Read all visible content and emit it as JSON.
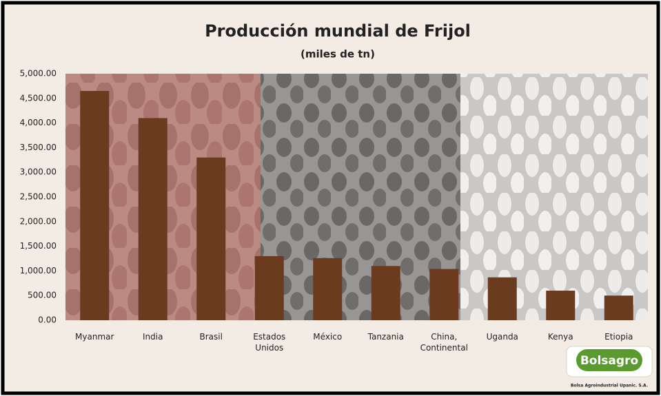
{
  "chart_data": {
    "type": "bar",
    "title": "Producción mundial de Frijol",
    "subtitle": "(miles de tn)",
    "categories": [
      "Myanmar",
      "India",
      "Brasil",
      "Estados Unidos",
      "México",
      "Tanzania",
      "China, Continental",
      "Uganda",
      "Kenya",
      "Etiopia"
    ],
    "values": [
      4650,
      4100,
      3300,
      1300,
      1260,
      1100,
      1040,
      870,
      600,
      500
    ],
    "color": "#6b3b20",
    "ylim": [
      0,
      5000
    ],
    "yticks": [
      {
        "value": 0,
        "label": "0.00"
      },
      {
        "value": 500,
        "label": "500.00"
      },
      {
        "value": 1000,
        "label": "1,000.00"
      },
      {
        "value": 1500,
        "label": "1,500.00"
      },
      {
        "value": 2000,
        "label": "2,000.00"
      },
      {
        "value": 2500,
        "label": "2,500.00"
      },
      {
        "value": 3000,
        "label": "3,000.00"
      },
      {
        "value": 3500,
        "label": "3,500.00"
      },
      {
        "value": 4000,
        "label": "4,000.00"
      },
      {
        "value": 4500,
        "label": "4,500.00"
      },
      {
        "value": 5000,
        "label": "5,000.00"
      }
    ],
    "grid": false,
    "logo": {
      "name": "Bolsagro",
      "tagline": "Bolsa Agroindustrial Upanic. S.A."
    }
  }
}
